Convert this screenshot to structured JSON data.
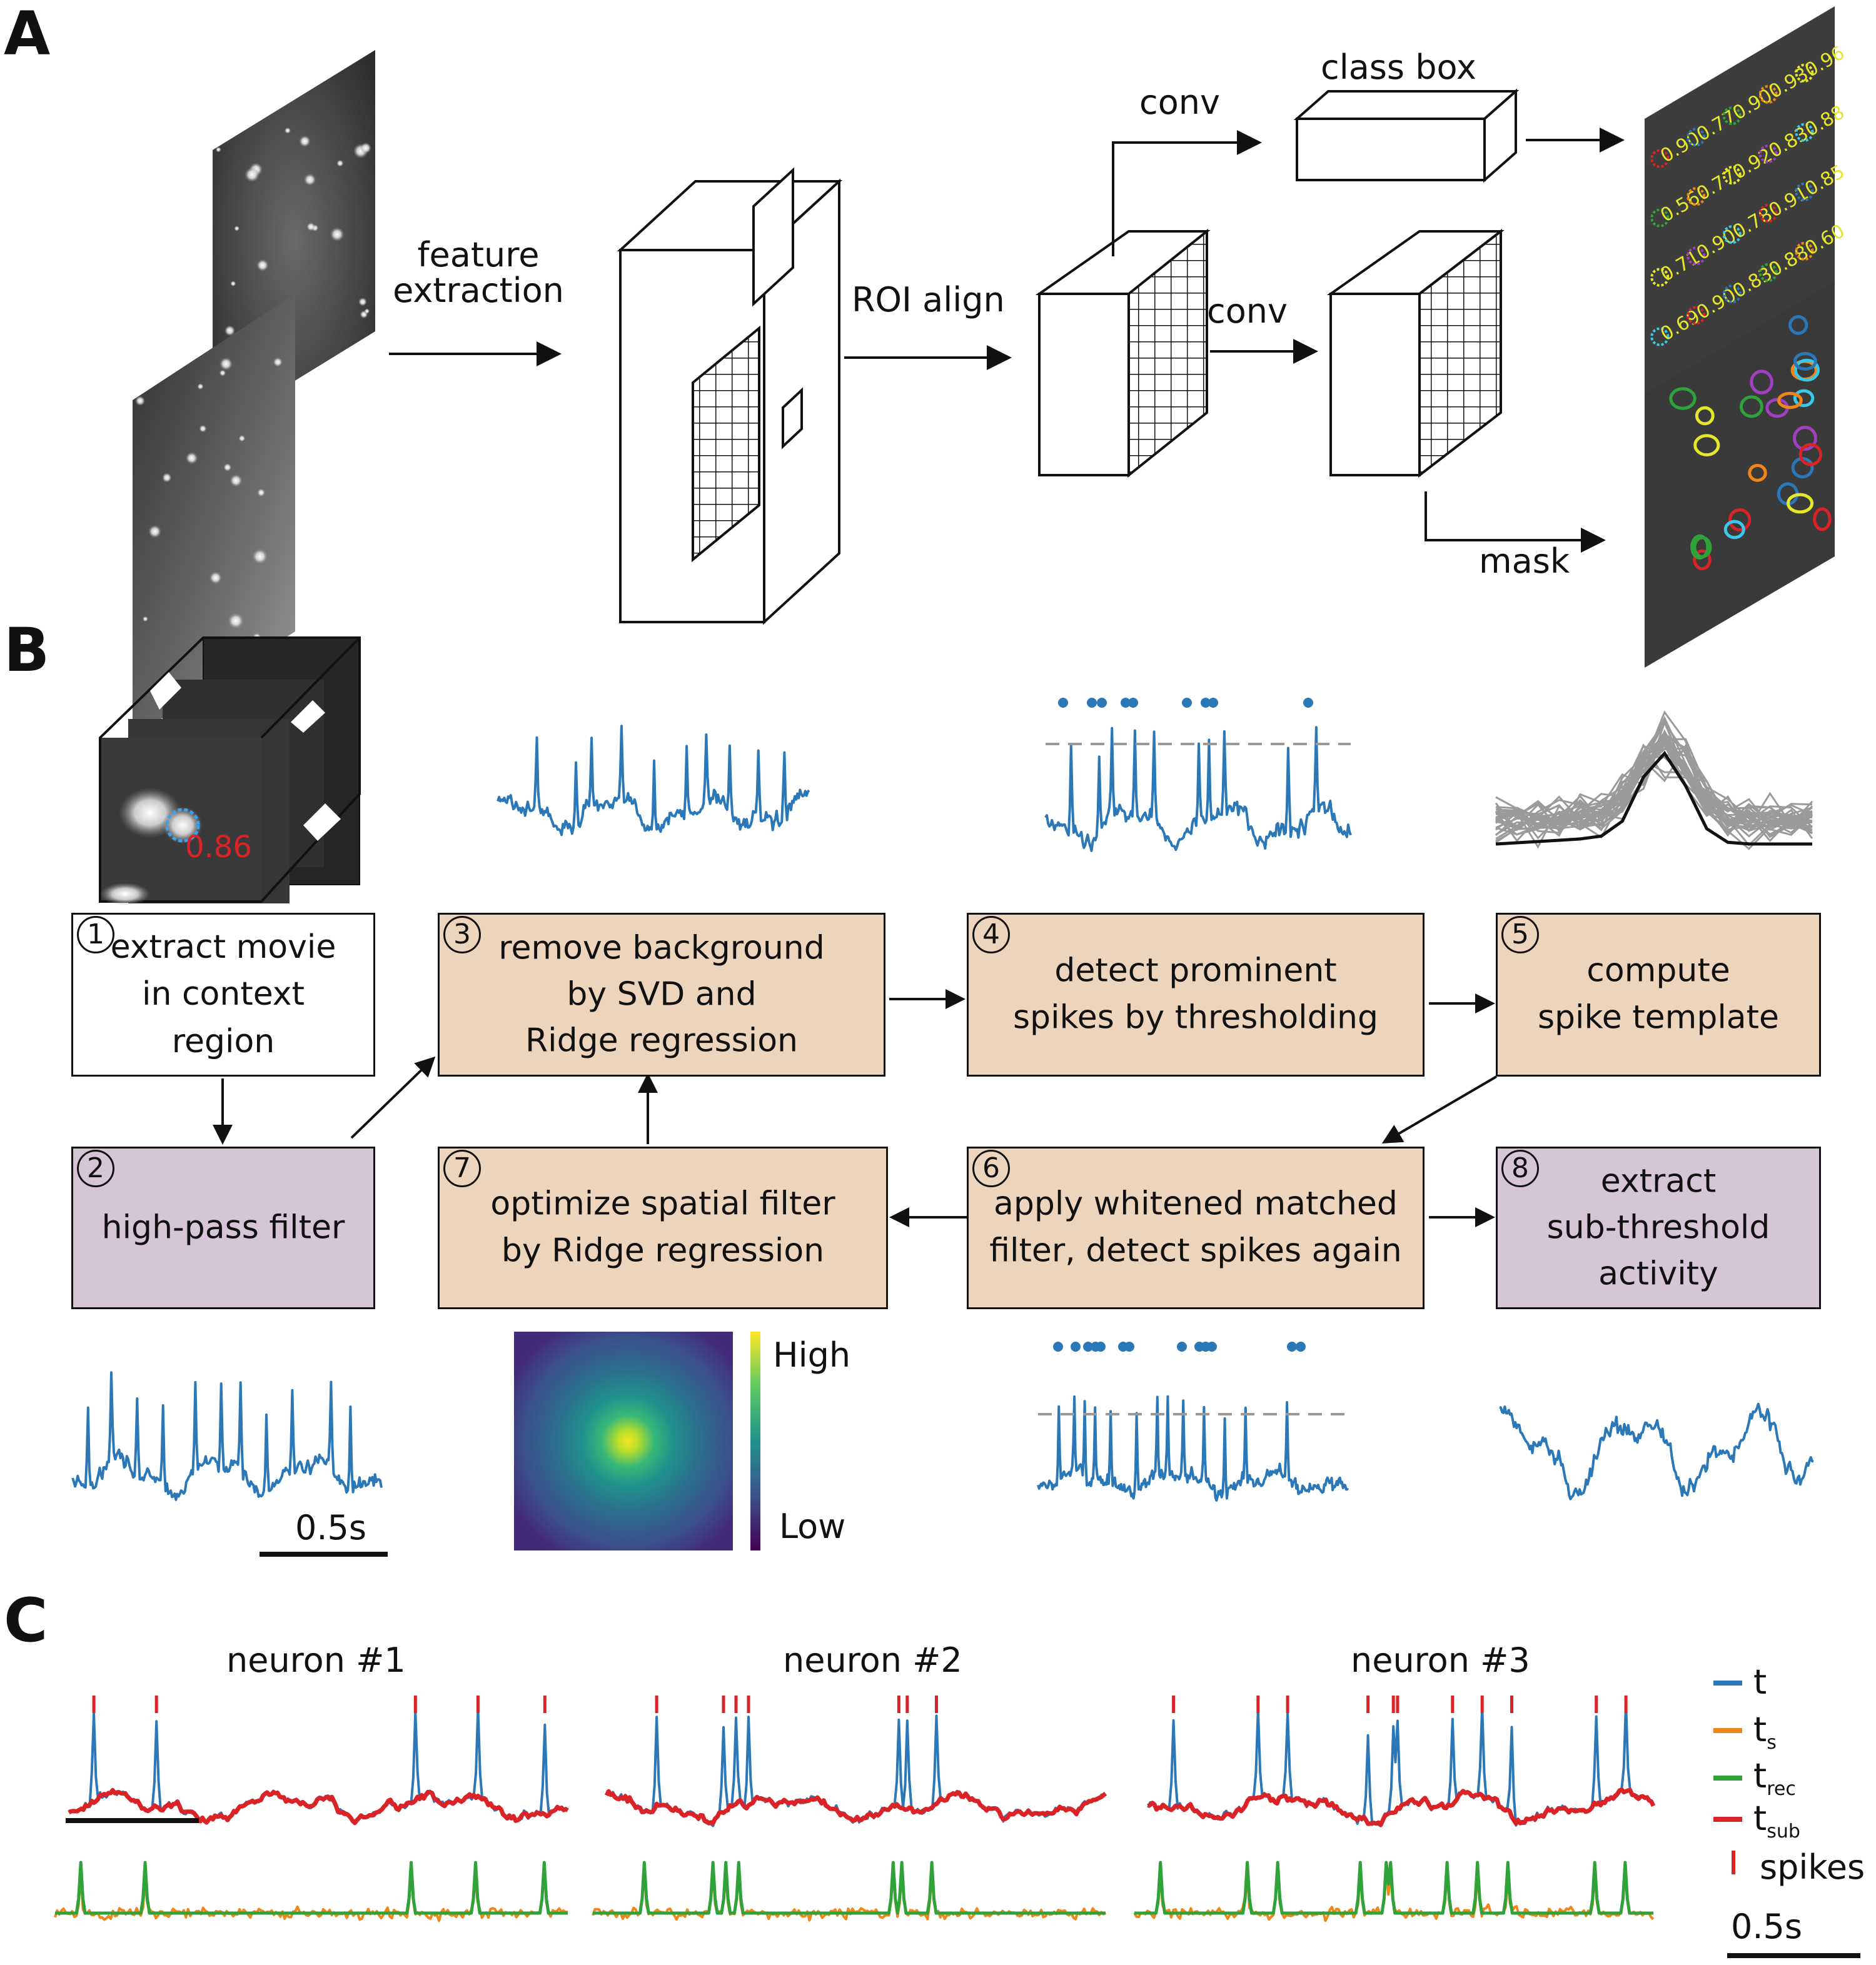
{
  "panels": {
    "a": "A",
    "b": "B",
    "c": "C"
  },
  "panelA": {
    "feature_extraction": [
      "feature",
      "extraction"
    ],
    "roi_align": "ROI align",
    "conv_top": "conv",
    "conv_mid": "conv",
    "class_box": "class box",
    "mask": "mask",
    "scores_row1": [
      "0.90",
      "0.77",
      "0.90",
      "0.93",
      "0.96"
    ],
    "scores_row2": [
      "0.56",
      "0.77",
      "0.92",
      "0.83",
      "0.88"
    ],
    "scores_row3": [
      "0.71",
      "0.90",
      "0.78",
      "0.91",
      "0.85"
    ],
    "scores_row4": [
      "0.69",
      "0.90",
      "0.83",
      "0.88",
      "0.60"
    ],
    "colors": {
      "blue": "#2a78b8",
      "orange": "#f0861a",
      "green": "#2fa23a",
      "red": "#d92327",
      "yellow": "#e6e62a",
      "gray": "#999999",
      "tan": "#ecd4bd",
      "mauve": "#d6c5d4"
    }
  },
  "panelB": {
    "roi_score": "0.86",
    "steps": [
      {
        "num": "1",
        "lines": [
          "extract movie",
          "in context region"
        ]
      },
      {
        "num": "2",
        "lines": [
          "high-pass filter"
        ]
      },
      {
        "num": "3",
        "lines": [
          "remove background",
          "by SVD and",
          "Ridge regression"
        ]
      },
      {
        "num": "4",
        "lines": [
          "detect prominent",
          "spikes by thresholding"
        ]
      },
      {
        "num": "5",
        "lines": [
          "compute",
          "spike template"
        ]
      },
      {
        "num": "6",
        "lines": [
          "apply whitened matched",
          "filter, detect spikes again"
        ]
      },
      {
        "num": "7",
        "lines": [
          "optimize spatial filter",
          "by Ridge regression"
        ]
      },
      {
        "num": "8",
        "lines": [
          "extract",
          "sub-threshold",
          "activity"
        ]
      }
    ],
    "colorbar_high": "High",
    "colorbar_low": "Low",
    "scalebar": "0.5s"
  },
  "panelC": {
    "neurons": [
      "neuron #1",
      "neuron #2",
      "neuron #3"
    ],
    "legend": [
      {
        "main": "t",
        "sub": "",
        "color": "#2a78b8",
        "kind": "line"
      },
      {
        "main": "t",
        "sub": "s",
        "color": "#f0861a",
        "kind": "line"
      },
      {
        "main": "t",
        "sub": "rec",
        "color": "#2fa23a",
        "kind": "line"
      },
      {
        "main": "t",
        "sub": "sub",
        "color": "#d92327",
        "kind": "line"
      },
      {
        "main": "spikes",
        "sub": "",
        "color": "#d92327",
        "kind": "tick"
      }
    ],
    "scalebar": "0.5s"
  }
}
